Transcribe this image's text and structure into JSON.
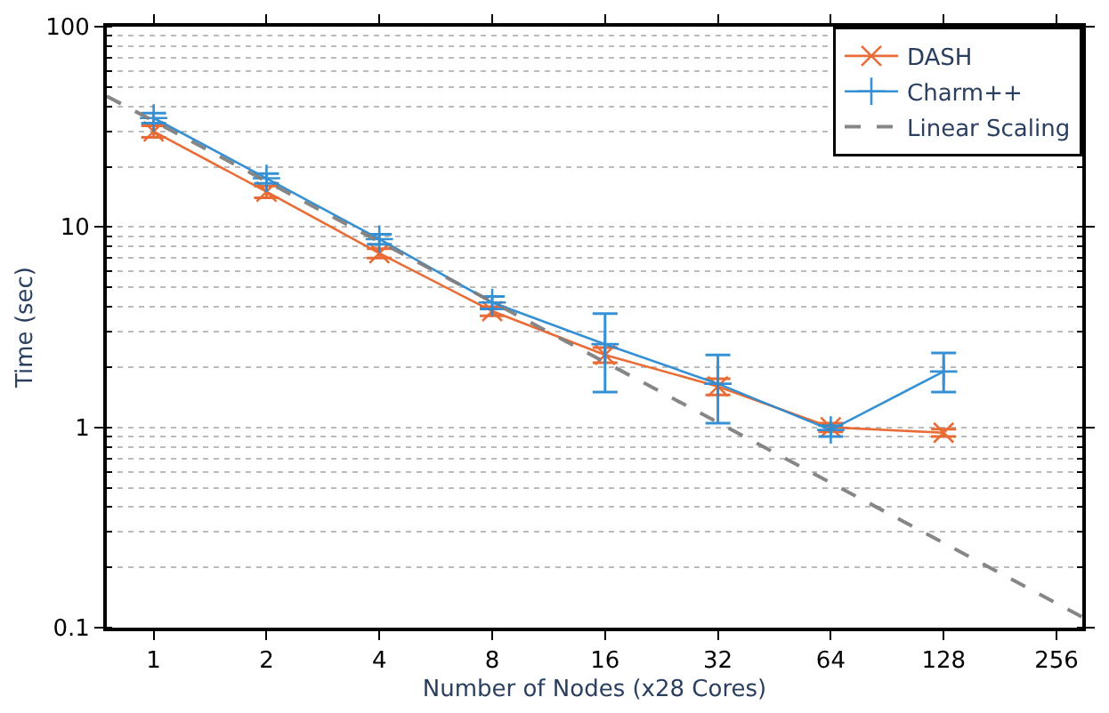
{
  "chart_data": {
    "type": "line",
    "xlabel": "Number of Nodes (x28 Cores)",
    "ylabel": "Time (sec)",
    "log": "xy",
    "xlim": [
      0.75,
      300
    ],
    "xticks": [
      1,
      2,
      4,
      8,
      16,
      32,
      64,
      128,
      256
    ],
    "ylim": [
      0.1,
      100
    ],
    "yticks": [
      0.1,
      1,
      10,
      100
    ],
    "grid": "y",
    "legend": "top right",
    "series": [
      {
        "name": "DASH",
        "color": "#e8642c",
        "marker": "cross",
        "x": [
          1,
          2,
          4,
          8,
          16,
          32,
          64,
          128
        ],
        "values": [
          30,
          15,
          7.4,
          3.8,
          2.3,
          1.6,
          1.0,
          0.94
        ],
        "errors": [
          [
            28,
            32
          ],
          [
            14,
            16
          ],
          [
            7,
            7.8
          ],
          [
            3.6,
            4
          ],
          [
            2.1,
            2.5
          ],
          [
            1.45,
            1.75
          ],
          [
            0.95,
            1.05
          ],
          [
            0.9,
            0.98
          ]
        ]
      },
      {
        "name": "Charm++",
        "color": "#2c8bd2",
        "marker": "plus",
        "x": [
          1,
          2,
          4,
          8,
          16,
          32,
          64,
          128
        ],
        "values": [
          35,
          17.5,
          8.7,
          4.2,
          2.6,
          1.65,
          0.97,
          1.9
        ],
        "errors": [
          [
            33,
            37
          ],
          [
            16.5,
            18.5
          ],
          [
            8.2,
            9.2
          ],
          [
            3.9,
            4.5
          ],
          [
            1.5,
            3.7
          ],
          [
            1.05,
            2.3
          ],
          [
            0.9,
            1.02
          ],
          [
            1.5,
            2.35
          ]
        ]
      },
      {
        "name": "Linear Scaling",
        "color": "#808080",
        "marker": "none",
        "line_style": "dashed",
        "x": [
          0.75,
          300
        ],
        "values": [
          45,
          0.113
        ]
      }
    ]
  }
}
